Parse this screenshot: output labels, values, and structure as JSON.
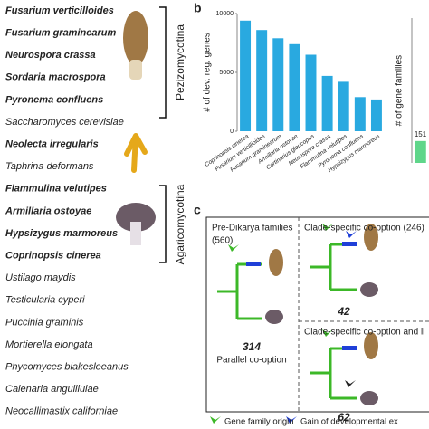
{
  "panel_a": {
    "label": "a",
    "species": [
      {
        "name": "Fusarium verticilloides",
        "bold": true
      },
      {
        "name": "Fusarium graminearum",
        "bold": true
      },
      {
        "name": "Neurospora crassa",
        "bold": true
      },
      {
        "name": "Sordaria macrospora",
        "bold": true
      },
      {
        "name": "Pyronema confluens",
        "bold": true
      },
      {
        "name": "Saccharomyces cerevisiae",
        "bold": false
      },
      {
        "name": "Neolecta irregularis",
        "bold": true
      },
      {
        "name": "Taphrina deformans",
        "bold": false
      },
      {
        "name": "Flammulina velutipes",
        "bold": true
      },
      {
        "name": "Armillaria ostoyae",
        "bold": true
      },
      {
        "name": "Hypsizygus marmoreus",
        "bold": true
      },
      {
        "name": "Coprinopsis cinerea",
        "bold": true
      },
      {
        "name": "Ustilago maydis",
        "bold": false
      },
      {
        "name": "Testicularia cyperi",
        "bold": false
      },
      {
        "name": "Puccinia graminis",
        "bold": false
      },
      {
        "name": "Mortierella elongata",
        "bold": false
      },
      {
        "name": "Phycomyces blakesleeanus",
        "bold": false
      },
      {
        "name": "Calenaria anguillulae",
        "bold": false
      },
      {
        "name": "Neocallimastix californiae",
        "bold": false
      }
    ],
    "groups": [
      "Pezizomycotina",
      "Agaricomycotina"
    ]
  },
  "panel_b": {
    "label": "b"
  },
  "chart_data": [
    {
      "type": "bar",
      "y_label": "# of dev. reg. genes",
      "categories": [
        "Coprinopsis cinerea",
        "Fusarium verticillioides",
        "Fusarium graminearum",
        "Armillaria ostoyae",
        "Cortinarius glaucopus",
        "Neurospora crassa",
        "Flammulina velutipes",
        "Pyronema confluens",
        "Hypsizygus marmoreus"
      ],
      "values": [
        9400,
        8600,
        7900,
        7400,
        6500,
        4700,
        4200,
        2900,
        2700
      ],
      "color": "#29a9e0",
      "ylim": [
        0,
        10000
      ],
      "yticks": [
        0,
        5000,
        10000
      ]
    },
    {
      "type": "bar",
      "y_label": "# of gene families",
      "categories": [
        null
      ],
      "values": [
        151
      ],
      "value_labels": [
        "151"
      ],
      "color": "#5fd68a",
      "ylim": [
        0,
        1000
      ]
    }
  ],
  "panel_c": {
    "label": "c",
    "pre_dikarya": "Pre-Dikarya families",
    "pre_dikarya_count": "(560)",
    "clade_specific": "Clade-specific co-option (246)",
    "clade_specific_and_loss": "Clade-specific co-option and li",
    "count_42": "42",
    "count_314": "314",
    "parallel": "Parallel co-option",
    "count_62": "62",
    "legend": [
      "Gene family origin",
      "Gain of developmental ex"
    ]
  }
}
